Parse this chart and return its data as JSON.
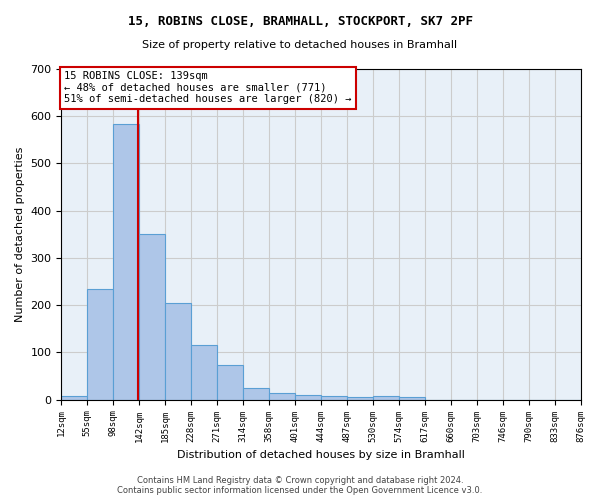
{
  "title1": "15, ROBINS CLOSE, BRAMHALL, STOCKPORT, SK7 2PF",
  "title2": "Size of property relative to detached houses in Bramhall",
  "xlabel": "Distribution of detached houses by size in Bramhall",
  "ylabel": "Number of detached properties",
  "bar_values": [
    7,
    234,
    583,
    350,
    204,
    115,
    73,
    25,
    15,
    10,
    8,
    5,
    8,
    5,
    0,
    0,
    0,
    0,
    0,
    0
  ],
  "bar_labels": [
    "12sqm",
    "55sqm",
    "98sqm",
    "142sqm",
    "185sqm",
    "228sqm",
    "271sqm",
    "314sqm",
    "358sqm",
    "401sqm",
    "444sqm",
    "487sqm",
    "530sqm",
    "574sqm",
    "617sqm",
    "660sqm",
    "703sqm",
    "746sqm",
    "790sqm",
    "833sqm",
    "876sqm"
  ],
  "bar_color": "#aec6e8",
  "bar_edge_color": "#5a9fd4",
  "vline_x": 139,
  "vline_color": "#cc0000",
  "annotation_text": "15 ROBINS CLOSE: 139sqm\n← 48% of detached houses are smaller (771)\n51% of semi-detached houses are larger (820) →",
  "annotation_box_color": "#ffffff",
  "annotation_box_edge_color": "#cc0000",
  "ylim": [
    0,
    700
  ],
  "xlim_start": 12,
  "bin_width": 43,
  "footer": "Contains HM Land Registry data © Crown copyright and database right 2024.\nContains public sector information licensed under the Open Government Licence v3.0.",
  "grid_color": "#cccccc",
  "bg_color": "#e8f0f8"
}
